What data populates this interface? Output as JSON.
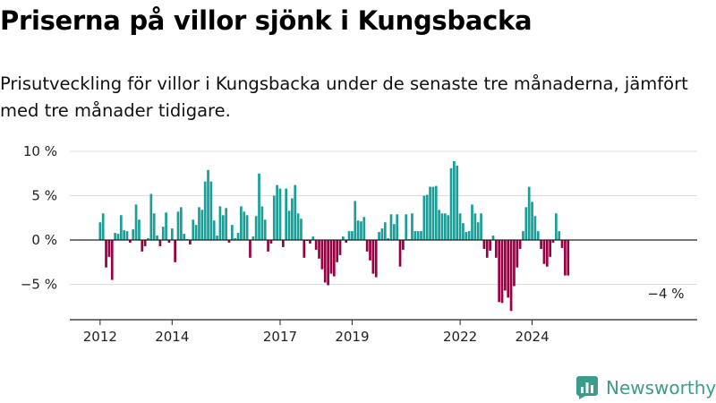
{
  "title": "Priserna på villor sjönk i Kungsbacka",
  "subtitle": "Prisutveckling för villor i Kungsbacka under de senaste tre månaderna, jämfört med tre månader tidigare.",
  "brand": "Newsworthy",
  "colors": {
    "positive": "#1a9e97",
    "negative": "#990044",
    "brand": "#3c9c8b"
  },
  "chart_data": {
    "type": "bar",
    "ylim": [
      -8.5,
      10
    ],
    "yticks": [
      10,
      5,
      0,
      -5
    ],
    "ytick_labels": [
      "10 %",
      "5 %",
      "0 %",
      "−5 %"
    ],
    "xticks": [
      {
        "index": 0,
        "label": "2012"
      },
      {
        "index": 24,
        "label": "2014"
      },
      {
        "index": 60,
        "label": "2017"
      },
      {
        "index": 84,
        "label": "2019"
      },
      {
        "index": 120,
        "label": "2022"
      },
      {
        "index": 144,
        "label": "2024"
      }
    ],
    "first_period": "2012-01",
    "grid": true,
    "last_value_label": "−4 %",
    "values": [
      2,
      3,
      -3.1,
      -1.9,
      -4.5,
      0.8,
      0.7,
      2.8,
      1.1,
      1,
      -0.3,
      1.2,
      4,
      2.3,
      -1.3,
      -0.7,
      0.2,
      5.2,
      3,
      0.5,
      -0.7,
      1.5,
      3.1,
      -0.3,
      1.3,
      -2.5,
      3.2,
      3.7,
      0.7,
      0.1,
      -0.5,
      2.3,
      1.7,
      3.7,
      3.4,
      6.6,
      7.9,
      6.6,
      2.2,
      0.5,
      3.8,
      2.8,
      3.6,
      -0.3,
      1.7,
      0.2,
      0.8,
      3.8,
      3.2,
      2.8,
      -2,
      0.4,
      2.7,
      7.5,
      3.8,
      2.3,
      -1.3,
      -0.4,
      5,
      6.2,
      5.8,
      -0.8,
      5.8,
      3.3,
      4.7,
      6.2,
      3,
      2.4,
      -2,
      -0.1,
      -0.4,
      0.4,
      -1.1,
      -2.1,
      -3.3,
      -4.8,
      -5.1,
      -3.8,
      -4.1,
      -2.5,
      -1.7,
      0.4,
      -0.3,
      1,
      1,
      4.4,
      2.2,
      2.1,
      2.6,
      -1.3,
      -2.3,
      -3.8,
      -4.2,
      0.9,
      1.3,
      2,
      0.2,
      2.9,
      1.8,
      2.9,
      -3,
      -1.1,
      2.9,
      0.1,
      3,
      1,
      1,
      1,
      5,
      5.1,
      6,
      6,
      6.1,
      3.4,
      3,
      3,
      2.8,
      8.1,
      8.9,
      8.4,
      3,
      1.9,
      0.9,
      1,
      4,
      3,
      2,
      3,
      -1,
      -2,
      -1.2,
      0.5,
      -2,
      -7,
      -7.1,
      -5.7,
      -6.5,
      -8,
      -5.2,
      -3.1,
      -1,
      1,
      3.7,
      6,
      4.3,
      2.7,
      1,
      -1,
      -2.7,
      -3,
      -1.9,
      -0.3,
      3,
      1,
      -0.9,
      -4,
      -4
    ]
  }
}
